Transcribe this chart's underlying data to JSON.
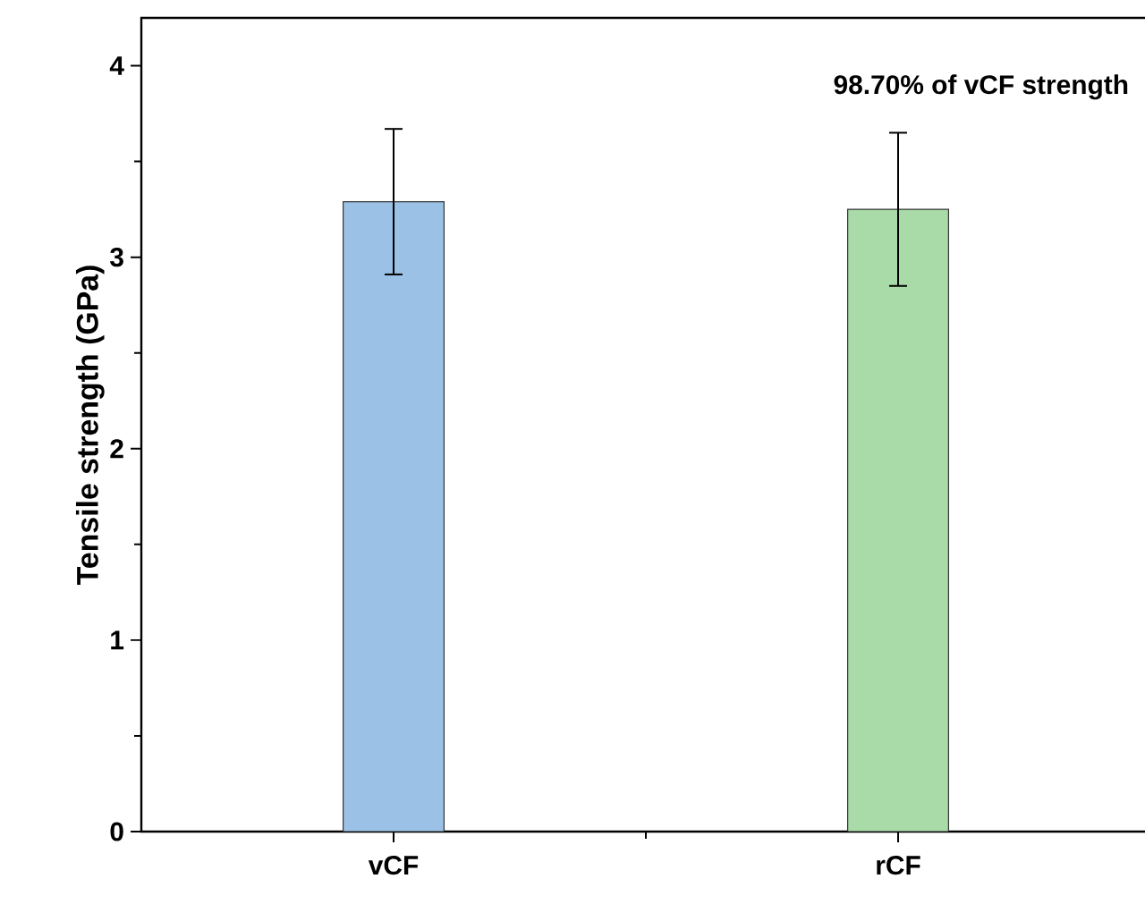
{
  "chart_data": {
    "type": "bar",
    "ylabel": "Tensile strength (GPa)",
    "categories": [
      "vCF",
      "rCF"
    ],
    "values": [
      3.29,
      3.25
    ],
    "errors": [
      0.38,
      0.4
    ],
    "colors": [
      "#9bc2e6",
      "#a8dba8"
    ],
    "ylim": [
      0,
      4.25
    ],
    "yticks": [
      0,
      1,
      2,
      3,
      4
    ],
    "annotations": [
      "98.70% of vCF strength"
    ]
  }
}
